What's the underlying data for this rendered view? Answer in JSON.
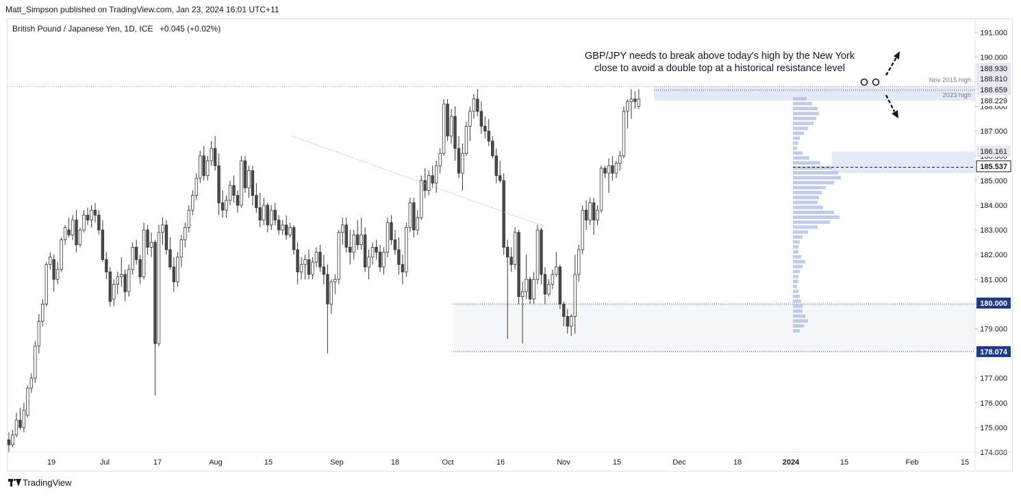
{
  "header": {
    "publisher_line": "Matt_Simpson published on TradingView.com, Jan 23, 2024 16:01 UTC+11"
  },
  "legend": {
    "symbol_line": "British Pound / Japanese Yen, 1D, ICE",
    "change": "+0.045 (+0.02%)"
  },
  "annotation": {
    "line1": "GBP/JPY needs to break above today's high by the New York",
    "line2": "close to avoid a double top at a historical resistance level"
  },
  "footer": {
    "brand": "TradingView"
  },
  "colors": {
    "bull": "#ffffff",
    "bear": "#4a4a4a",
    "wick": "#333333",
    "zone_blue": "#dde3f5",
    "profile_blue": "#a9bce6",
    "dotted": "#9598a1",
    "label_bg": "#1e3a8a"
  },
  "chart_data": {
    "type": "candlestick",
    "title": "British Pound / Japanese Yen, 1D, ICE",
    "ylim": [
      174.0,
      191.5
    ],
    "y_ticks": [
      "191.000",
      "190.000",
      "189.000",
      "188.000",
      "187.000",
      "186.000",
      "185.000",
      "184.000",
      "183.000",
      "182.000",
      "181.000",
      "180.000",
      "179.000",
      "178.000",
      "177.000",
      "176.000",
      "175.000",
      "174.000"
    ],
    "x_ticks": [
      "19",
      "Jul",
      "17",
      "Aug",
      "15",
      "Sep",
      "18",
      "Oct",
      "16",
      "Nov",
      "15",
      "Dec",
      "18",
      "2024",
      "15",
      "Feb",
      "15"
    ],
    "x_tick_bold": "2024",
    "price_labels": [
      {
        "text": "188.930",
        "style": "gray",
        "value": 188.93
      },
      {
        "text": "188.810",
        "style": "gray",
        "value": 188.81
      },
      {
        "text": "188.659",
        "style": "gray",
        "value": 188.659
      },
      {
        "text": "188.229",
        "style": "plain",
        "value": 188.229
      },
      {
        "text": "186.161",
        "style": "gray",
        "value": 186.161
      },
      {
        "text": "185.537",
        "style": "dark",
        "value": 185.537
      },
      {
        "text": "180.000",
        "style": "blue",
        "value": 180.0
      },
      {
        "text": "178.074",
        "style": "blue",
        "value": 178.074
      }
    ],
    "level_labels": [
      {
        "text": "Nov 2015 high",
        "value": 188.81
      },
      {
        "text": "2023 high",
        "value": 188.229
      }
    ],
    "series": [
      {
        "name": "GBPJPY",
        "ohlc": [
          [
            174.5,
            174.8,
            174.0,
            174.3
          ],
          [
            174.3,
            174.9,
            174.2,
            174.7
          ],
          [
            174.7,
            175.6,
            174.6,
            175.3
          ],
          [
            175.3,
            175.8,
            174.9,
            175.0
          ],
          [
            175.0,
            176.0,
            174.8,
            175.7
          ],
          [
            175.5,
            176.7,
            175.4,
            176.6
          ],
          [
            176.6,
            177.2,
            176.4,
            177.0
          ],
          [
            177.0,
            178.5,
            176.8,
            178.3
          ],
          [
            178.3,
            179.6,
            178.0,
            179.3
          ],
          [
            179.3,
            180.2,
            179.1,
            180.0
          ],
          [
            180.0,
            181.7,
            179.9,
            181.6
          ],
          [
            181.6,
            182.1,
            181.4,
            181.9
          ],
          [
            181.8,
            182.0,
            180.5,
            181.0
          ],
          [
            181.0,
            181.7,
            180.8,
            181.4
          ],
          [
            181.4,
            182.7,
            181.3,
            182.6
          ],
          [
            182.6,
            183.2,
            182.4,
            183.1
          ],
          [
            183.0,
            183.5,
            182.7,
            182.8
          ],
          [
            182.8,
            183.6,
            182.6,
            183.4
          ],
          [
            183.4,
            183.8,
            182.1,
            182.4
          ],
          [
            182.4,
            183.1,
            182.3,
            183.0
          ],
          [
            183.0,
            183.8,
            182.9,
            183.6
          ],
          [
            183.6,
            183.9,
            183.2,
            183.4
          ],
          [
            183.4,
            184.0,
            183.1,
            183.8
          ],
          [
            183.8,
            184.1,
            183.3,
            183.6
          ],
          [
            183.6,
            183.8,
            182.8,
            183.0
          ],
          [
            183.0,
            183.4,
            181.7,
            181.8
          ],
          [
            181.8,
            182.1,
            181.0,
            181.3
          ],
          [
            181.3,
            181.5,
            179.9,
            180.1
          ],
          [
            180.2,
            181.0,
            179.9,
            180.8
          ],
          [
            180.8,
            181.3,
            180.4,
            181.1
          ],
          [
            181.1,
            181.9,
            180.7,
            181.2
          ],
          [
            181.2,
            181.4,
            180.1,
            180.5
          ],
          [
            180.5,
            181.6,
            180.3,
            181.4
          ],
          [
            181.4,
            182.5,
            181.2,
            182.3
          ],
          [
            182.3,
            182.6,
            181.6,
            181.8
          ],
          [
            181.8,
            182.0,
            180.8,
            181.1
          ],
          [
            181.1,
            183.3,
            181.0,
            183.0
          ],
          [
            183.0,
            183.2,
            182.0,
            182.3
          ],
          [
            182.3,
            182.9,
            181.9,
            182.5
          ],
          [
            182.5,
            182.6,
            176.3,
            178.4
          ],
          [
            178.4,
            183.2,
            178.3,
            182.9
          ],
          [
            182.9,
            183.5,
            182.4,
            183.2
          ],
          [
            183.2,
            183.4,
            182.0,
            182.2
          ],
          [
            182.2,
            182.7,
            181.4,
            181.5
          ],
          [
            181.5,
            181.9,
            180.5,
            180.9
          ],
          [
            180.9,
            182.1,
            180.7,
            181.9
          ],
          [
            181.9,
            182.8,
            181.5,
            182.6
          ],
          [
            182.6,
            183.3,
            182.3,
            183.1
          ],
          [
            183.1,
            184.0,
            182.9,
            183.8
          ],
          [
            183.8,
            184.6,
            183.6,
            184.4
          ],
          [
            184.4,
            185.3,
            184.2,
            185.1
          ],
          [
            185.1,
            186.2,
            184.9,
            186.0
          ],
          [
            186.0,
            186.4,
            185.0,
            185.2
          ],
          [
            185.2,
            186.0,
            185.0,
            185.8
          ],
          [
            185.8,
            186.6,
            185.6,
            186.3
          ],
          [
            186.3,
            186.8,
            185.4,
            185.6
          ],
          [
            185.6,
            186.1,
            183.6,
            184.1
          ],
          [
            184.1,
            184.6,
            183.5,
            183.8
          ],
          [
            183.8,
            184.4,
            183.5,
            184.2
          ],
          [
            184.2,
            185.0,
            184.0,
            184.8
          ],
          [
            184.8,
            185.2,
            184.1,
            184.4
          ],
          [
            184.4,
            184.6,
            183.7,
            184.0
          ],
          [
            184.0,
            186.0,
            183.9,
            185.8
          ],
          [
            185.8,
            186.0,
            184.5,
            184.7
          ],
          [
            184.7,
            185.6,
            184.3,
            185.4
          ],
          [
            185.4,
            185.6,
            184.0,
            184.4
          ],
          [
            184.4,
            184.9,
            183.7,
            183.9
          ],
          [
            183.9,
            184.5,
            183.1,
            183.4
          ],
          [
            183.4,
            184.3,
            183.2,
            184.0
          ],
          [
            184.0,
            184.1,
            182.9,
            183.2
          ],
          [
            183.2,
            184.0,
            183.0,
            183.8
          ],
          [
            183.8,
            184.1,
            183.2,
            183.4
          ],
          [
            183.4,
            183.6,
            182.8,
            183.0
          ],
          [
            183.0,
            183.4,
            182.8,
            183.2
          ],
          [
            183.2,
            183.6,
            182.6,
            182.8
          ],
          [
            182.8,
            183.3,
            182.7,
            183.1
          ],
          [
            183.1,
            183.2,
            182.0,
            182.2
          ],
          [
            182.2,
            182.5,
            180.8,
            181.3
          ],
          [
            181.3,
            181.9,
            181.0,
            181.6
          ],
          [
            181.6,
            182.0,
            181.0,
            181.8
          ],
          [
            181.8,
            182.2,
            181.0,
            181.2
          ],
          [
            181.2,
            181.9,
            181.0,
            181.7
          ],
          [
            181.7,
            182.3,
            181.5,
            182.1
          ],
          [
            182.1,
            182.4,
            181.3,
            181.5
          ],
          [
            181.5,
            182.0,
            180.8,
            181.2
          ],
          [
            181.2,
            181.6,
            178.0,
            180.0
          ],
          [
            180.0,
            181.0,
            179.6,
            180.9
          ],
          [
            180.9,
            181.2,
            180.4,
            181.0
          ],
          [
            181.0,
            183.0,
            180.8,
            182.9
          ],
          [
            182.9,
            183.5,
            182.4,
            183.2
          ],
          [
            183.2,
            183.5,
            182.1,
            182.3
          ],
          [
            182.3,
            183.0,
            181.6,
            182.1
          ],
          [
            182.1,
            183.0,
            181.8,
            182.8
          ],
          [
            182.8,
            183.4,
            182.2,
            182.4
          ],
          [
            182.4,
            183.5,
            182.2,
            182.8
          ],
          [
            182.8,
            183.1,
            181.3,
            181.5
          ],
          [
            181.5,
            182.2,
            181.0,
            181.9
          ],
          [
            181.9,
            182.5,
            181.6,
            182.3
          ],
          [
            182.3,
            182.6,
            181.8,
            182.1
          ],
          [
            182.1,
            182.4,
            181.3,
            181.5
          ],
          [
            181.5,
            182.3,
            181.2,
            182.1
          ],
          [
            182.1,
            183.5,
            181.9,
            183.3
          ],
          [
            183.3,
            183.6,
            182.4,
            182.6
          ],
          [
            182.6,
            183.0,
            182.0,
            182.2
          ],
          [
            182.2,
            182.7,
            181.2,
            181.6
          ],
          [
            181.6,
            182.0,
            180.8,
            181.3
          ],
          [
            181.3,
            183.3,
            181.1,
            183.1
          ],
          [
            183.1,
            184.3,
            182.9,
            184.1
          ],
          [
            184.1,
            184.3,
            182.7,
            183.0
          ],
          [
            183.0,
            183.8,
            182.8,
            183.5
          ],
          [
            183.5,
            185.2,
            183.4,
            185.0
          ],
          [
            185.0,
            185.5,
            184.3,
            184.6
          ],
          [
            184.6,
            185.4,
            184.4,
            185.2
          ],
          [
            185.2,
            185.6,
            184.7,
            184.9
          ],
          [
            184.9,
            185.8,
            184.5,
            185.6
          ],
          [
            185.6,
            186.3,
            185.3,
            186.1
          ],
          [
            186.1,
            188.3,
            186.0,
            188.1
          ],
          [
            188.1,
            188.3,
            186.6,
            186.8
          ],
          [
            186.8,
            187.9,
            186.5,
            187.6
          ],
          [
            187.6,
            188.0,
            185.8,
            186.3
          ],
          [
            186.3,
            186.8,
            185.1,
            185.3
          ],
          [
            185.3,
            186.5,
            184.6,
            186.1
          ],
          [
            186.1,
            187.4,
            186.0,
            187.2
          ],
          [
            187.2,
            188.0,
            186.6,
            187.8
          ],
          [
            187.8,
            188.5,
            187.5,
            188.3
          ],
          [
            188.3,
            188.7,
            187.6,
            187.8
          ],
          [
            187.8,
            188.2,
            186.9,
            187.2
          ],
          [
            187.2,
            187.6,
            186.7,
            187.0
          ],
          [
            187.0,
            187.5,
            186.4,
            186.6
          ],
          [
            186.6,
            186.8,
            185.9,
            186.0
          ],
          [
            186.0,
            186.3,
            184.9,
            185.2
          ],
          [
            185.2,
            185.8,
            184.9,
            185.0
          ],
          [
            185.0,
            185.3,
            182.0,
            182.3
          ],
          [
            182.3,
            182.6,
            178.6,
            181.9
          ],
          [
            181.9,
            182.3,
            181.3,
            181.6
          ],
          [
            181.6,
            183.1,
            181.4,
            182.9
          ],
          [
            182.9,
            183.0,
            180.0,
            180.3
          ],
          [
            180.3,
            180.9,
            178.4,
            180.5
          ],
          [
            180.5,
            182.0,
            180.2,
            181.0
          ],
          [
            181.0,
            181.1,
            180.0,
            180.2
          ],
          [
            180.2,
            181.3,
            180.0,
            181.0
          ],
          [
            181.0,
            183.2,
            180.8,
            183.0
          ],
          [
            183.0,
            183.1,
            180.8,
            181.2
          ],
          [
            181.2,
            181.5,
            180.0,
            180.4
          ],
          [
            180.4,
            181.0,
            180.3,
            180.8
          ],
          [
            180.8,
            181.4,
            180.6,
            181.2
          ],
          [
            181.2,
            182.1,
            181.1,
            181.5
          ],
          [
            181.5,
            181.6,
            179.8,
            180.0
          ],
          [
            180.0,
            180.1,
            179.1,
            179.5
          ],
          [
            179.5,
            179.8,
            178.8,
            179.1
          ],
          [
            179.1,
            179.6,
            178.7,
            179.5
          ],
          [
            179.5,
            182.0,
            178.8,
            181.2
          ],
          [
            181.2,
            182.4,
            180.9,
            182.2
          ],
          [
            182.2,
            184.0,
            182.0,
            183.8
          ],
          [
            183.8,
            184.2,
            183.0,
            183.4
          ],
          [
            183.4,
            184.3,
            183.2,
            184.1
          ],
          [
            184.1,
            184.3,
            182.8,
            183.4
          ],
          [
            183.4,
            184.0,
            183.2,
            183.8
          ],
          [
            183.8,
            185.6,
            183.7,
            185.5
          ],
          [
            185.5,
            185.6,
            185.1,
            185.3
          ],
          [
            185.3,
            185.9,
            184.5,
            185.6
          ],
          [
            185.6,
            186.0,
            185.0,
            185.3
          ],
          [
            185.3,
            185.8,
            185.1,
            185.7
          ],
          [
            185.7,
            186.2,
            185.4,
            186.0
          ],
          [
            186.0,
            188.0,
            185.9,
            187.8
          ],
          [
            187.8,
            188.3,
            187.1,
            188.2
          ],
          [
            188.2,
            188.7,
            187.5,
            188.3
          ],
          [
            188.3,
            188.6,
            187.9,
            188.2
          ],
          [
            188.0,
            188.7,
            187.9,
            188.3
          ]
        ]
      }
    ]
  }
}
